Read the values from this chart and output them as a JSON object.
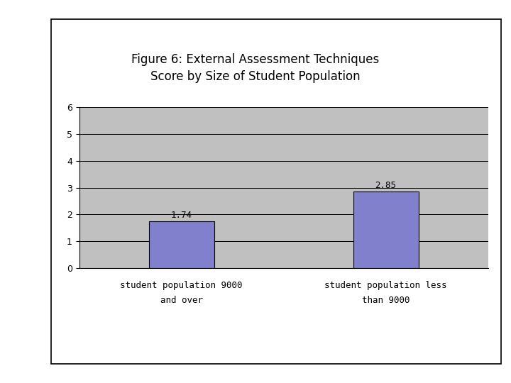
{
  "title_line1": "Figure 6: External Assessment Techniques",
  "title_line2": "Score by Size of Student Population",
  "values": [
    1.74,
    2.85
  ],
  "bar_color": "#8080CC",
  "bar_edge_color": "#000000",
  "ylim": [
    0,
    6
  ],
  "yticks": [
    0,
    1,
    2,
    3,
    4,
    5,
    6
  ],
  "plot_bg_color": "#C0C0C0",
  "outer_bg_color": "#FFFFFF",
  "title_fontsize": 12,
  "label_fontsize": 9,
  "tick_fontsize": 9,
  "value_label_fontsize": 9,
  "bar_width": 0.32,
  "label1_line1": "student population 9000",
  "label1_line2": "and over",
  "label2_line1": "student population less",
  "label2_line2": "than 9000"
}
